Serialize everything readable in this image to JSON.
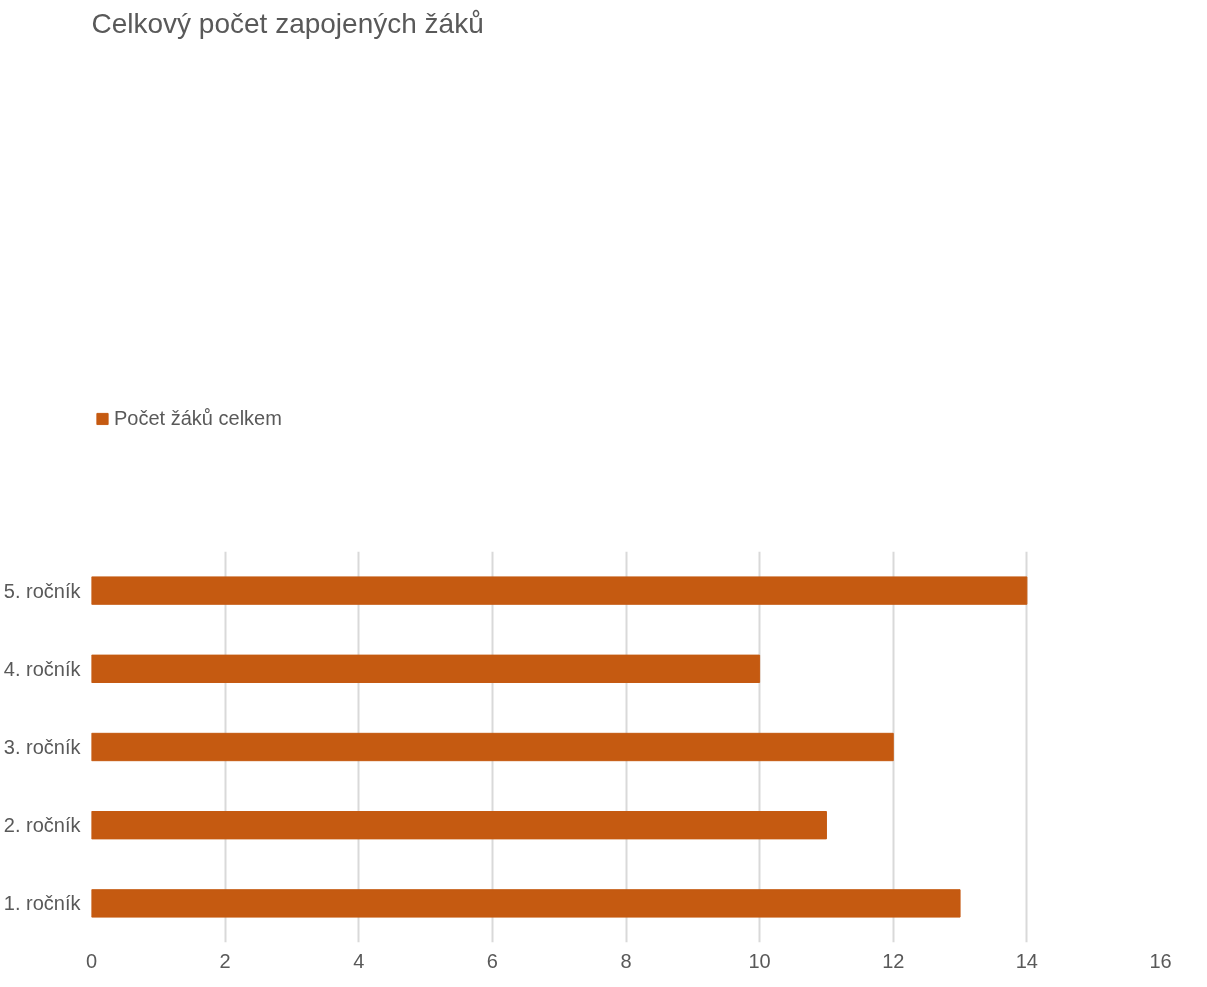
{
  "chart_data": {
    "type": "bar",
    "orientation": "horizontal",
    "title": "Celkový počet zapojených žáků",
    "categories": [
      "5. ročník",
      "4. ročník",
      "3. ročník",
      "2. ročník",
      "1. ročník"
    ],
    "series": [
      {
        "name": "Počet žáků celkem",
        "color": "#c55a11",
        "values": [
          14,
          10,
          12,
          11,
          13
        ]
      }
    ],
    "xlim": [
      0,
      16
    ],
    "xticks": [
      0,
      2,
      4,
      6,
      8,
      10,
      12,
      14,
      16
    ],
    "grid": "x",
    "legend": "top left"
  }
}
